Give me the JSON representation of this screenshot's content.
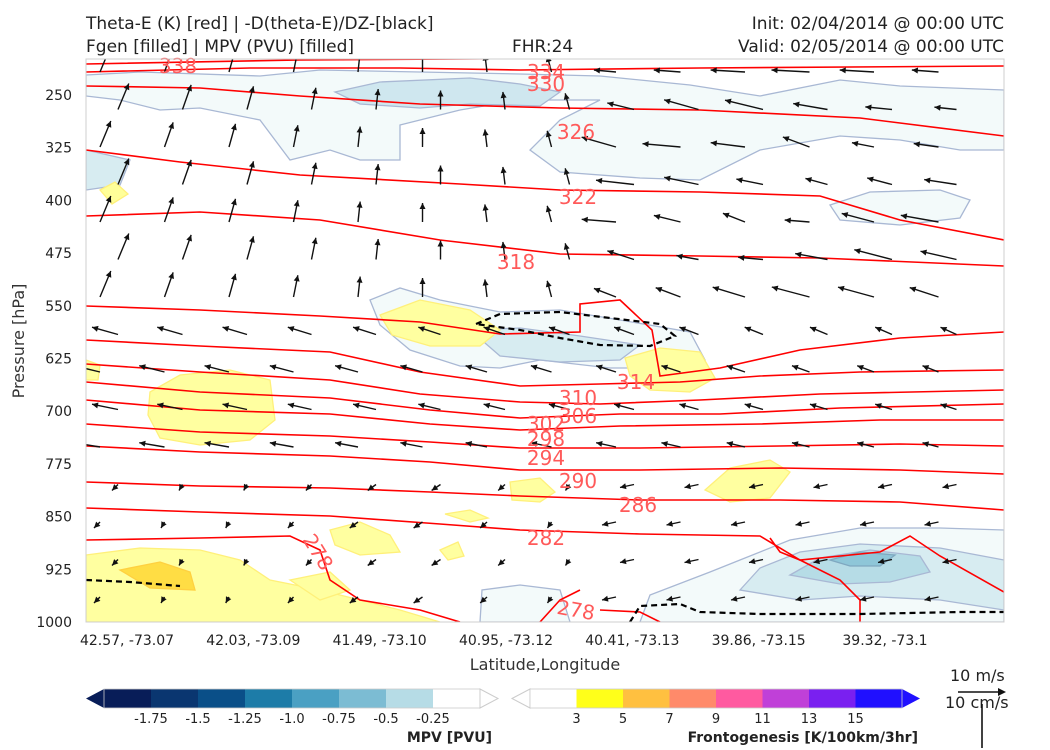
{
  "header": {
    "title_left_1": "Theta-E (K) [red] | -D(theta-E)/DZ-[black]",
    "title_left_2": "Fgen [filled] | MPV (PVU) [filled]",
    "fhr": "FHR:24",
    "init": "Init: 02/04/2014 @ 00:00 UTC",
    "valid": "Valid: 02/05/2014 @ 00:00 UTC"
  },
  "chart_data": {
    "type": "cross-section",
    "xlabel": "Latitude,Longitude",
    "ylabel": "Pressure [hPa]",
    "x_ticks": [
      "42.57, -73.07",
      "42.03, -73.09",
      "41.49, -73.10",
      "40.95, -73.12",
      "40.41, -73.13",
      "39.86, -73.15",
      "39.32, -73.1"
    ],
    "y_ticks": [
      250,
      325,
      400,
      475,
      550,
      625,
      700,
      775,
      850,
      925,
      1000
    ],
    "ylim": [
      1000,
      200
    ],
    "theta_e_labels": [
      "334",
      "330",
      "326",
      "322",
      "318",
      "314",
      "310",
      "306",
      "302",
      "298",
      "294",
      "290",
      "286",
      "282",
      "278",
      "278",
      "338"
    ],
    "theta_e_color": "#ff0000",
    "stability_color": "#000000",
    "mpv_colorbar": {
      "label": "MPV [PVU]",
      "ticks": [
        "-1.75",
        "-1.5",
        "-1.25",
        "-1.0",
        "-0.75",
        "-0.5",
        "-0.25"
      ],
      "colors": [
        "#081d58",
        "#0a3670",
        "#0a4f88",
        "#1d7ca8",
        "#4aa0c3",
        "#7cbcd3",
        "#b6dce6",
        "#ffffff"
      ]
    },
    "fgen_colorbar": {
      "label": "Frontogenesis [K/100km/3hr]",
      "ticks": [
        "3",
        "5",
        "7",
        "9",
        "11",
        "13",
        "15"
      ],
      "colors": [
        "#ffffff",
        "#ffff1a",
        "#ffc040",
        "#ff8a6a",
        "#ff5aa0",
        "#c040d8",
        "#7a20f0",
        "#2010ff"
      ]
    },
    "vector_key": {
      "horizontal": "10 m/s",
      "vertical": "10 cm/s"
    }
  }
}
